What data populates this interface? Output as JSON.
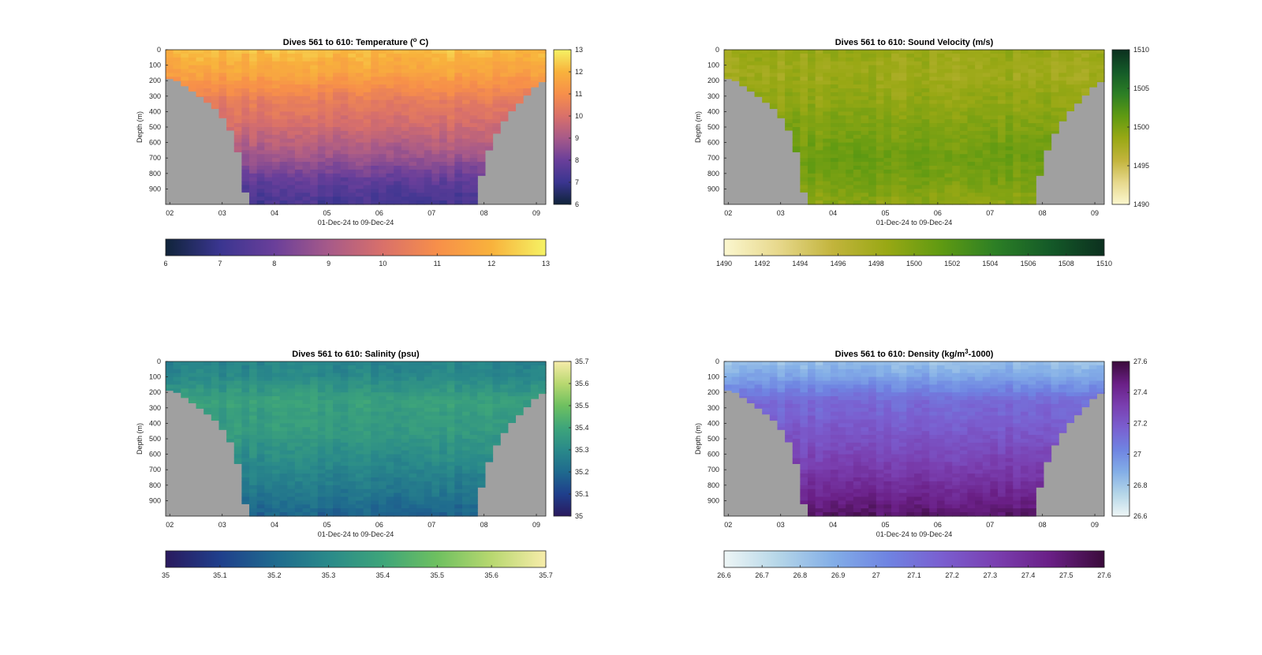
{
  "chart_data": [
    {
      "type": "heatmap",
      "title": "Dives 561 to 610: Temperature (",
      "title_unit_sup": "o",
      "title_suffix": " C)",
      "xlabel": "01-Dec-24 to 09-Dec-24",
      "ylabel": "Depth (m)",
      "x_ticks": [
        "02",
        "03",
        "04",
        "05",
        "06",
        "07",
        "08",
        "09"
      ],
      "y_ticks": [
        "0",
        "100",
        "200",
        "300",
        "400",
        "500",
        "600",
        "700",
        "800",
        "900"
      ],
      "ylim": [
        0,
        1000
      ],
      "colorbar_ticks_vertical": [
        "6",
        "7",
        "8",
        "9",
        "10",
        "11",
        "12",
        "13"
      ],
      "colorbar_ticks_horizontal": [
        "6",
        "7",
        "8",
        "9",
        "10",
        "11",
        "12",
        "13"
      ],
      "clim": [
        6,
        13
      ],
      "colormap": [
        "#10243a",
        "#3a3590",
        "#6a3f9a",
        "#a75a89",
        "#d9706a",
        "#f78f4a",
        "#f8b23c",
        "#f5f264"
      ],
      "depth_profile": {
        "depth": [
          0,
          150,
          300,
          500,
          700,
          850,
          1000
        ],
        "value": [
          12.2,
          11.6,
          10.6,
          9.8,
          8.8,
          7.8,
          7.2
        ]
      }
    },
    {
      "type": "heatmap",
      "title": "Dives 561 to 610: Sound Velocity (m/s)",
      "xlabel": "01-Dec-24 to 09-Dec-24",
      "ylabel": "Depth (m)",
      "x_ticks": [
        "02",
        "03",
        "04",
        "05",
        "06",
        "07",
        "08",
        "09"
      ],
      "y_ticks": [
        "0",
        "100",
        "200",
        "300",
        "400",
        "500",
        "600",
        "700",
        "800",
        "900"
      ],
      "ylim": [
        0,
        1000
      ],
      "colorbar_ticks_vertical": [
        "1490",
        "1495",
        "1500",
        "1505",
        "1510"
      ],
      "colorbar_ticks_horizontal": [
        "1490",
        "1492",
        "1494",
        "1496",
        "1498",
        "1500",
        "1502",
        "1504",
        "1506",
        "1508",
        "1510"
      ],
      "clim": [
        1490,
        1510
      ],
      "colormap": [
        "#fbf7cf",
        "#e7d88c",
        "#c2b43c",
        "#98a814",
        "#5f9a12",
        "#2c7f25",
        "#145a28",
        "#0c301f"
      ],
      "depth_profile": {
        "depth": [
          0,
          150,
          300,
          500,
          700,
          850,
          1000
        ],
        "value": [
          1498.5,
          1498.0,
          1498.8,
          1499.8,
          1500.8,
          1500.2,
          1499.0
        ]
      }
    },
    {
      "type": "heatmap",
      "title": "Dives 561 to 610: Salinity (psu)",
      "xlabel": "01-Dec-24 to 09-Dec-24",
      "ylabel": "Depth (m)",
      "x_ticks": [
        "02",
        "03",
        "04",
        "05",
        "06",
        "07",
        "08",
        "09"
      ],
      "y_ticks": [
        "0",
        "100",
        "200",
        "300",
        "400",
        "500",
        "600",
        "700",
        "800",
        "900"
      ],
      "ylim": [
        0,
        1000
      ],
      "colorbar_ticks_vertical": [
        "35",
        "35.1",
        "35.2",
        "35.3",
        "35.4",
        "35.5",
        "35.6",
        "35.7"
      ],
      "colorbar_ticks_horizontal": [
        "35",
        "35.1",
        "35.2",
        "35.3",
        "35.4",
        "35.5",
        "35.6",
        "35.7"
      ],
      "clim": [
        35,
        35.7
      ],
      "colormap": [
        "#2a1a5e",
        "#1f3f8c",
        "#1f6a8e",
        "#2a8a8a",
        "#3ea57a",
        "#6ec060",
        "#b8d870",
        "#f7ecaa"
      ],
      "depth_profile": {
        "depth": [
          0,
          100,
          250,
          450,
          650,
          850,
          1000
        ],
        "value": [
          35.28,
          35.3,
          35.38,
          35.36,
          35.3,
          35.24,
          35.18
        ]
      }
    },
    {
      "type": "heatmap",
      "title": "Dives 561 to 610: Density (kg/m",
      "title_unit_sup": "3",
      "title_suffix": "-1000)",
      "xlabel": "01-Dec-24 to 09-Dec-24",
      "ylabel": "Depth (m)",
      "x_ticks": [
        "02",
        "03",
        "04",
        "05",
        "06",
        "07",
        "08",
        "09"
      ],
      "y_ticks": [
        "0",
        "100",
        "200",
        "300",
        "400",
        "500",
        "600",
        "700",
        "800",
        "900"
      ],
      "ylim": [
        0,
        1000
      ],
      "colorbar_ticks_vertical": [
        "26.6",
        "26.8",
        "27",
        "27.2",
        "27.4",
        "27.6"
      ],
      "colorbar_ticks_horizontal": [
        "26.6",
        "26.7",
        "26.8",
        "26.9",
        "27",
        "27.1",
        "27.2",
        "27.3",
        "27.4",
        "27.5",
        "27.6"
      ],
      "clim": [
        26.6,
        27.6
      ],
      "colormap": [
        "#eef6f6",
        "#b5d6e8",
        "#83aee7",
        "#6f84e2",
        "#7a5fd0",
        "#7a3fb0",
        "#6a1f86",
        "#3a0b3a"
      ],
      "depth_profile": {
        "depth": [
          0,
          100,
          250,
          450,
          650,
          850,
          1000
        ],
        "value": [
          26.82,
          26.92,
          27.12,
          27.2,
          27.3,
          27.42,
          27.52
        ]
      }
    }
  ]
}
